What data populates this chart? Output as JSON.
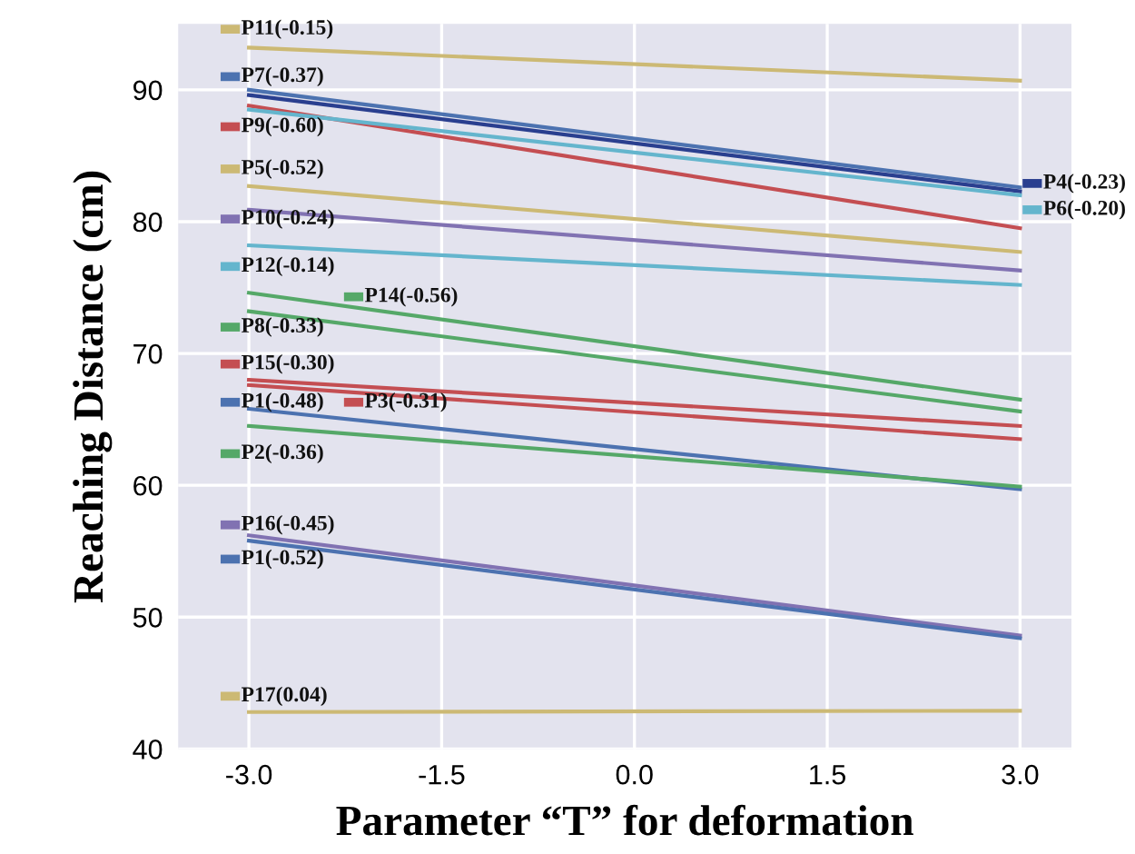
{
  "chart_data": {
    "type": "line",
    "xlabel": "Parameter “T” for deformation",
    "ylabel": "Reaching Distance (cm)",
    "x": [
      -3,
      3
    ],
    "series": [
      {
        "name": "P11(-0.15)",
        "color": "#ccb974",
        "values": [
          93.2,
          90.7
        ]
      },
      {
        "name": "P7(-0.37)",
        "color": "#4c72b0",
        "values": [
          90.0,
          82.6
        ]
      },
      {
        "name": "P4(-0.23)",
        "color": "#2a3f8f",
        "values": [
          89.6,
          82.3
        ]
      },
      {
        "name": "P9(-0.60)",
        "color": "#c44e52",
        "values": [
          88.8,
          79.5
        ]
      },
      {
        "name": "P6(-0.20)",
        "color": "#64b5cd",
        "values": [
          88.5,
          82.0
        ]
      },
      {
        "name": "P5(-0.52)",
        "color": "#ccb974",
        "values": [
          82.7,
          77.7
        ]
      },
      {
        "name": "P10(-0.24)",
        "color": "#8172b2",
        "values": [
          80.9,
          76.3
        ]
      },
      {
        "name": "P12(-0.14)",
        "color": "#64b5cd",
        "values": [
          78.2,
          75.2
        ]
      },
      {
        "name": "P14(-0.56)",
        "color": "#55a868",
        "values": [
          74.6,
          66.5
        ]
      },
      {
        "name": "P8(-0.33)",
        "color": "#55a868",
        "values": [
          73.2,
          65.6
        ]
      },
      {
        "name": "P15(-0.30)",
        "color": "#c44e52",
        "values": [
          68.0,
          64.5
        ]
      },
      {
        "name": "P3(-0.31)",
        "color": "#c44e52",
        "values": [
          67.6,
          63.5
        ]
      },
      {
        "name": "P1(-0.48)",
        "color": "#4c72b0",
        "values": [
          65.8,
          59.7
        ]
      },
      {
        "name": "P2(-0.36)",
        "color": "#55a868",
        "values": [
          64.5,
          59.9
        ]
      },
      {
        "name": "P16(-0.45)",
        "color": "#8172b2",
        "values": [
          56.2,
          48.6
        ]
      },
      {
        "name": "P1(-0.52)",
        "color": "#4c72b0",
        "values": [
          55.8,
          48.4
        ]
      },
      {
        "name": "P17(0.04)",
        "color": "#ccb974",
        "values": [
          42.8,
          42.9
        ]
      }
    ],
    "xlim": [
      -3.55,
      3.4
    ],
    "ylim": [
      40,
      95
    ],
    "xticks": [
      {
        "value": -3,
        "label": "-3.0"
      },
      {
        "value": -1.5,
        "label": "-1.5"
      },
      {
        "value": 0,
        "label": "0.0"
      },
      {
        "value": 1.5,
        "label": "1.5"
      },
      {
        "value": 3,
        "label": "3.0"
      }
    ],
    "yticks": [
      40,
      50,
      60,
      70,
      80,
      90
    ],
    "grid": true,
    "legend": "top right",
    "marker": "none",
    "line_style": "solid"
  }
}
